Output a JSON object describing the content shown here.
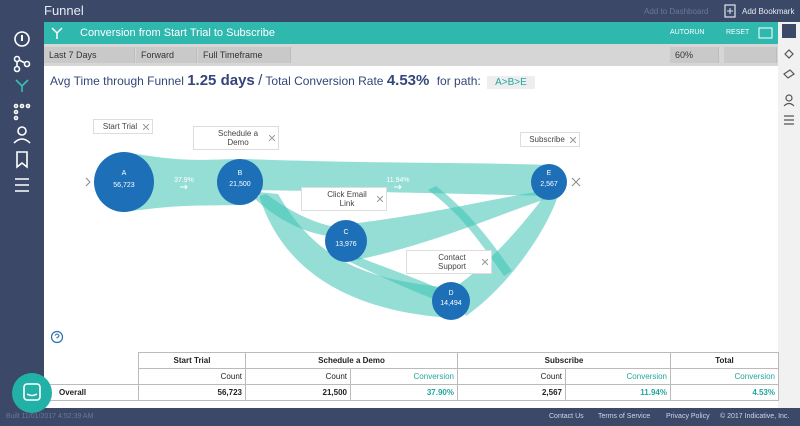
{
  "app": {
    "title": "Funnel",
    "add_to_dashboard": "Add to Dashboard",
    "add_bookmark": "Add Bookmark"
  },
  "panel": {
    "title": "Conversion from Start Trial to Subscribe",
    "autorun": "AUTORUN",
    "reset": "RESET"
  },
  "toolbar": {
    "date_range": "Last 7 Days",
    "direction": "Forward",
    "timeframe": "Full Timeframe",
    "zoom": "60%"
  },
  "summary": {
    "avg_time_label": "Avg Time through Funnel",
    "avg_time": "1.25 days",
    "separator": "/",
    "conversion_label": "Total Conversion Rate",
    "conversion": "4.53%",
    "path_label": "for path:",
    "path": "A>B>E"
  },
  "nodes": [
    {
      "letter": "A",
      "count": "56,723",
      "label": "Start Trial"
    },
    {
      "letter": "B",
      "count": "21,500",
      "label": "Schedule a Demo"
    },
    {
      "letter": "C",
      "count": "13,976",
      "label": "Click Email Link"
    },
    {
      "letter": "D",
      "count": "14,494",
      "label": "Contact Support"
    },
    {
      "letter": "E",
      "count": "2,567",
      "label": "Subscribe"
    }
  ],
  "edges": [
    {
      "label": "37.9%"
    },
    {
      "label": "11.94%"
    }
  ],
  "table": {
    "groups": [
      "Start Trial",
      "Schedule a Demo",
      "Subscribe",
      "Total"
    ],
    "columns": [
      "Count",
      "Count",
      "Conversion",
      "Count",
      "Conversion",
      "Conversion"
    ],
    "rows": [
      [
        "Overall",
        "56,723",
        "21,500",
        "37.90%",
        "2,567",
        "11.94%",
        "4.53%"
      ]
    ]
  },
  "footer": {
    "built": "Built 11/01/2017 4:52:39 AM",
    "links": [
      "Contact Us",
      "Terms of Service",
      "Privacy Policy"
    ],
    "copyright": "© 2017 Indicative, Inc."
  }
}
